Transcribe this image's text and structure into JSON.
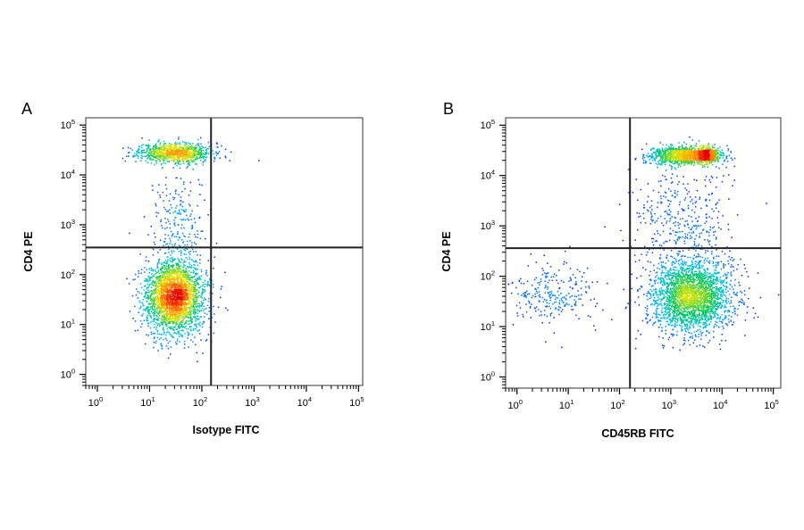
{
  "chart_data": [
    {
      "type": "scatter",
      "panel_label": "A",
      "xlabel": "Isotype FITC",
      "ylabel": "CD4 PE",
      "x_scale": "log",
      "y_scale": "log",
      "x_range": [
        0.6,
        120000
      ],
      "y_range": [
        0.6,
        140000
      ],
      "x_ticks": [
        {
          "base": "10",
          "exp": "0",
          "value": 1
        },
        {
          "base": "10",
          "exp": "1",
          "value": 10
        },
        {
          "base": "10",
          "exp": "2",
          "value": 100
        },
        {
          "base": "10",
          "exp": "3",
          "value": 1000
        },
        {
          "base": "10",
          "exp": "4",
          "value": 10000
        },
        {
          "base": "10",
          "exp": "5",
          "value": 100000
        }
      ],
      "y_ticks": [
        {
          "base": "10",
          "exp": "0",
          "value": 1
        },
        {
          "base": "10",
          "exp": "1",
          "value": 10
        },
        {
          "base": "10",
          "exp": "2",
          "value": 100
        },
        {
          "base": "10",
          "exp": "3",
          "value": 1000
        },
        {
          "base": "10",
          "exp": "4",
          "value": 10000
        },
        {
          "base": "10",
          "exp": "5",
          "value": 100000
        }
      ],
      "gate": {
        "x": 150,
        "y": 350
      },
      "grid": false,
      "colormap": "density (blue-cyan-green-yellow-red)",
      "clusters": [
        {
          "x_center": 30,
          "y_center": 28000,
          "x_spread_decades": 0.35,
          "y_spread_decades": 0.1,
          "events": 900,
          "description": "CD4+ isotype-negative"
        },
        {
          "x_center": 30,
          "y_center": 35,
          "x_spread_decades": 0.28,
          "y_spread_decades": 0.38,
          "events": 2600,
          "description": "CD4- isotype-negative"
        },
        {
          "x_center": 35,
          "y_center": 1200,
          "x_spread_decades": 0.25,
          "y_spread_decades": 0.55,
          "events": 220,
          "description": "intermediate events"
        }
      ]
    },
    {
      "type": "scatter",
      "panel_label": "B",
      "xlabel": "CD45RB FITC",
      "ylabel": "CD4 PE",
      "x_scale": "log",
      "y_scale": "log",
      "x_range": [
        0.6,
        140000
      ],
      "y_range": [
        0.6,
        140000
      ],
      "x_ticks": [
        {
          "base": "10",
          "exp": "0",
          "value": 1
        },
        {
          "base": "10",
          "exp": "1",
          "value": 10
        },
        {
          "base": "10",
          "exp": "2",
          "value": 100
        },
        {
          "base": "10",
          "exp": "3",
          "value": 1000
        },
        {
          "base": "10",
          "exp": "4",
          "value": 10000
        },
        {
          "base": "10",
          "exp": "5",
          "value": 100000
        }
      ],
      "y_ticks": [
        {
          "base": "10",
          "exp": "0",
          "value": 1
        },
        {
          "base": "10",
          "exp": "1",
          "value": 10
        },
        {
          "base": "10",
          "exp": "2",
          "value": 100
        },
        {
          "base": "10",
          "exp": "3",
          "value": 1000
        },
        {
          "base": "10",
          "exp": "4",
          "value": 10000
        },
        {
          "base": "10",
          "exp": "5",
          "value": 100000
        }
      ],
      "gate": {
        "x": 160,
        "y": 360
      },
      "grid": false,
      "colormap": "density (blue-cyan-green-yellow-red)",
      "clusters": [
        {
          "x_center": 1800,
          "y_center": 25000,
          "x_spread_decades": 0.35,
          "y_spread_decades": 0.09,
          "events": 1100,
          "description": "CD4+ CD45RB+"
        },
        {
          "x_center": 5000,
          "y_center": 25000,
          "x_spread_decades": 0.12,
          "y_spread_decades": 0.07,
          "events": 450,
          "description": "CD4+ CD45RB high"
        },
        {
          "x_center": 2500,
          "y_center": 40,
          "x_spread_decades": 0.4,
          "y_spread_decades": 0.35,
          "events": 2600,
          "description": "CD4- CD45RB+"
        },
        {
          "x_center": 5,
          "y_center": 40,
          "x_spread_decades": 0.45,
          "y_spread_decades": 0.3,
          "events": 260,
          "description": "CD4- CD45RB-"
        },
        {
          "x_center": 1500,
          "y_center": 1200,
          "x_spread_decades": 0.5,
          "y_spread_decades": 0.55,
          "events": 380,
          "description": "intermediate events"
        }
      ]
    }
  ]
}
